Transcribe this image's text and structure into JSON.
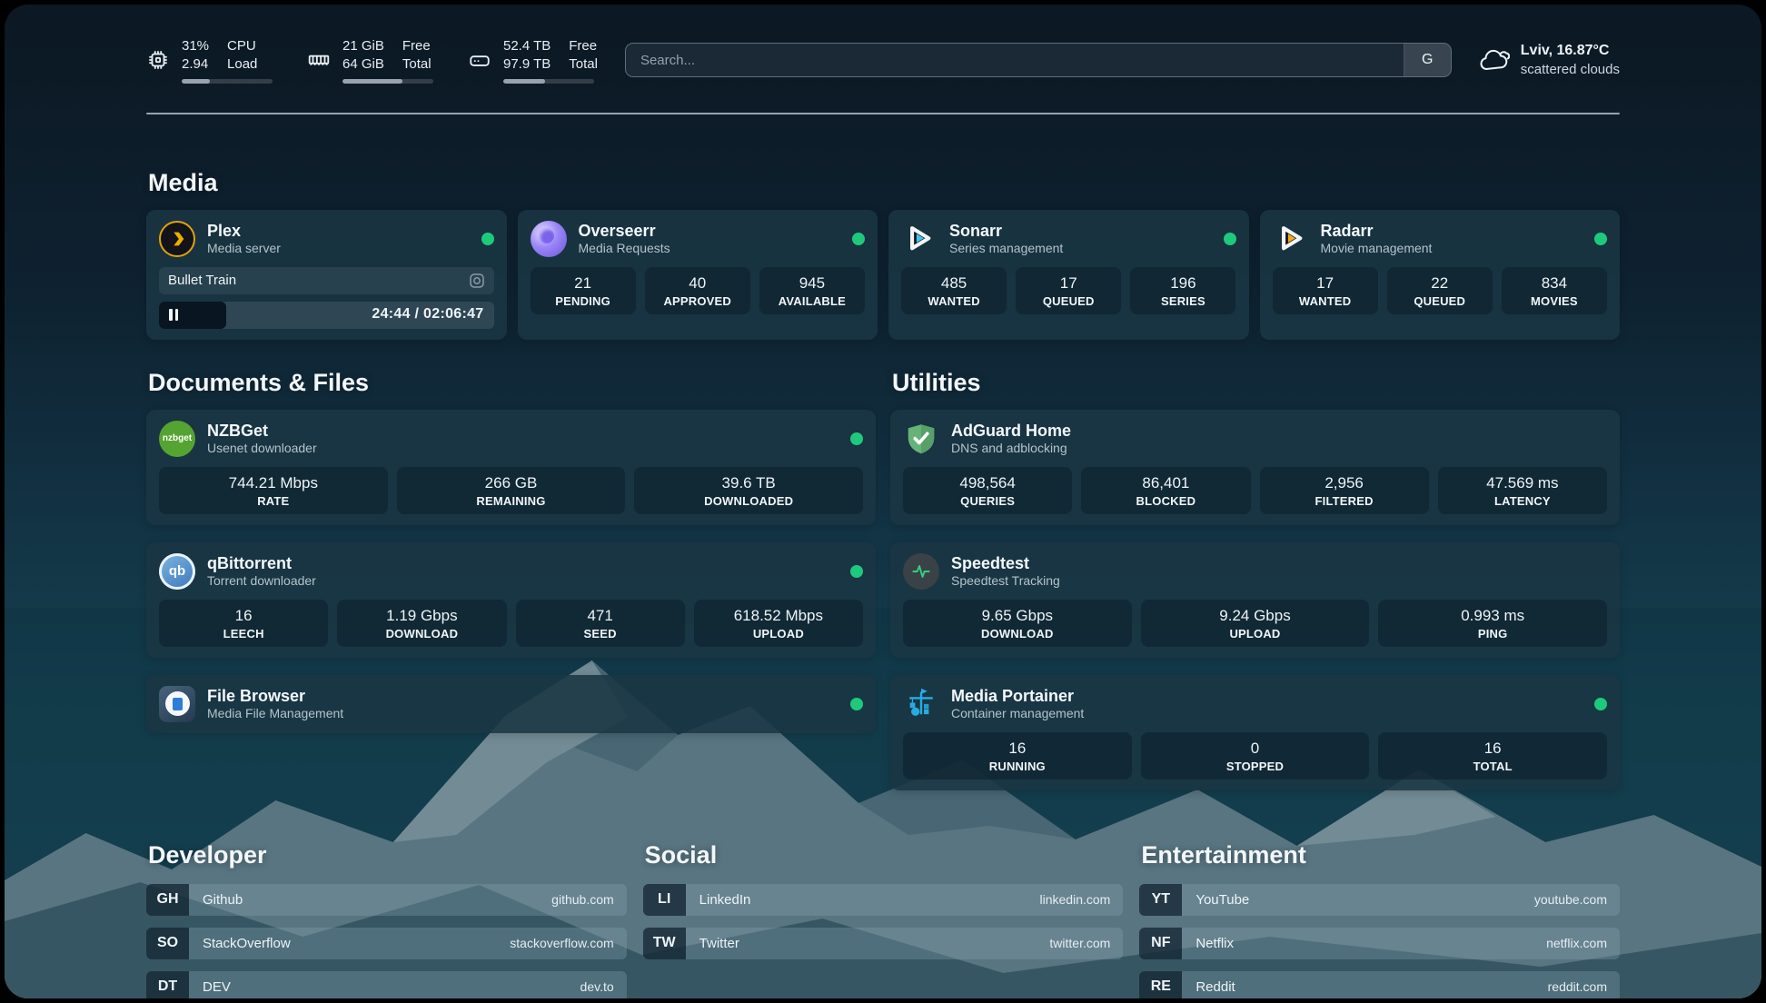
{
  "header": {
    "stats": [
      {
        "icon": "cpu-icon",
        "value1": "31%",
        "value2": "2.94",
        "label1": "CPU",
        "label2": "Load",
        "progress": 31
      },
      {
        "icon": "ram-icon",
        "value1": "21 GiB",
        "value2": "64 GiB",
        "label1": "Free",
        "label2": "Total",
        "progress": 66
      },
      {
        "icon": "disk-icon",
        "value1": "52.4 TB",
        "value2": "97.9 TB",
        "label1": "Free",
        "label2": "Total",
        "progress": 46
      }
    ],
    "search": {
      "placeholder": "Search...",
      "button": "G"
    },
    "weather": {
      "location_temp": "Lviv, 16.87°C",
      "condition": "scattered clouds"
    }
  },
  "media": {
    "title": "Media",
    "cards": [
      {
        "name": "Plex",
        "desc": "Media server",
        "online": true,
        "player": {
          "now_playing": "Bullet Train",
          "time": "24:44 / 02:06:47",
          "progress_pct": 20
        }
      },
      {
        "name": "Overseerr",
        "desc": "Media Requests",
        "online": true,
        "stats": [
          {
            "v": "21",
            "l": "PENDING"
          },
          {
            "v": "40",
            "l": "APPROVED"
          },
          {
            "v": "945",
            "l": "AVAILABLE"
          }
        ]
      },
      {
        "name": "Sonarr",
        "desc": "Series management",
        "online": true,
        "stats": [
          {
            "v": "485",
            "l": "WANTED"
          },
          {
            "v": "17",
            "l": "QUEUED"
          },
          {
            "v": "196",
            "l": "SERIES"
          }
        ]
      },
      {
        "name": "Radarr",
        "desc": "Movie management",
        "online": true,
        "stats": [
          {
            "v": "17",
            "l": "WANTED"
          },
          {
            "v": "22",
            "l": "QUEUED"
          },
          {
            "v": "834",
            "l": "MOVIES"
          }
        ]
      }
    ]
  },
  "documents": {
    "title": "Documents & Files",
    "cards": [
      {
        "name": "NZBGet",
        "desc": "Usenet downloader",
        "online": true,
        "stats": [
          {
            "v": "744.21 Mbps",
            "l": "RATE"
          },
          {
            "v": "266 GB",
            "l": "REMAINING"
          },
          {
            "v": "39.6 TB",
            "l": "DOWNLOADED"
          }
        ]
      },
      {
        "name": "qBittorrent",
        "desc": "Torrent downloader",
        "online": true,
        "stats": [
          {
            "v": "16",
            "l": "LEECH"
          },
          {
            "v": "1.19 Gbps",
            "l": "DOWNLOAD"
          },
          {
            "v": "471",
            "l": "SEED"
          },
          {
            "v": "618.52 Mbps",
            "l": "UPLOAD"
          }
        ]
      },
      {
        "name": "File Browser",
        "desc": "Media File Management",
        "online": true
      }
    ]
  },
  "utilities": {
    "title": "Utilities",
    "cards": [
      {
        "name": "AdGuard Home",
        "desc": "DNS and adblocking",
        "stats": [
          {
            "v": "498,564",
            "l": "QUERIES"
          },
          {
            "v": "86,401",
            "l": "BLOCKED"
          },
          {
            "v": "2,956",
            "l": "FILTERED"
          },
          {
            "v": "47.569 ms",
            "l": "LATENCY"
          }
        ]
      },
      {
        "name": "Speedtest",
        "desc": "Speedtest Tracking",
        "stats": [
          {
            "v": "9.65 Gbps",
            "l": "DOWNLOAD"
          },
          {
            "v": "9.24 Gbps",
            "l": "UPLOAD"
          },
          {
            "v": "0.993 ms",
            "l": "PING"
          }
        ]
      },
      {
        "name": "Media Portainer",
        "desc": "Container management",
        "online": true,
        "stats": [
          {
            "v": "16",
            "l": "RUNNING"
          },
          {
            "v": "0",
            "l": "STOPPED"
          },
          {
            "v": "16",
            "l": "TOTAL"
          }
        ]
      }
    ]
  },
  "bookmarks": {
    "groups": [
      {
        "title": "Developer",
        "items": [
          {
            "abbr": "GH",
            "name": "Github",
            "domain": "github.com"
          },
          {
            "abbr": "SO",
            "name": "StackOverflow",
            "domain": "stackoverflow.com"
          },
          {
            "abbr": "DT",
            "name": "DEV",
            "domain": "dev.to"
          }
        ]
      },
      {
        "title": "Social",
        "items": [
          {
            "abbr": "LI",
            "name": "LinkedIn",
            "domain": "linkedin.com"
          },
          {
            "abbr": "TW",
            "name": "Twitter",
            "domain": "twitter.com"
          }
        ]
      },
      {
        "title": "Entertainment",
        "items": [
          {
            "abbr": "YT",
            "name": "YouTube",
            "domain": "youtube.com"
          },
          {
            "abbr": "NF",
            "name": "Netflix",
            "domain": "netflix.com"
          },
          {
            "abbr": "RE",
            "name": "Reddit",
            "domain": "reddit.com"
          }
        ]
      }
    ]
  },
  "accent_colors": {
    "status_online": "#1fc97c",
    "plex_yellow": "#e5a00d",
    "sonarr_blue": "#38c6f4",
    "radarr_gold": "#f5a623",
    "overseerr_purple": "#8b76f0",
    "nzbget_green": "#55a431",
    "qbittorrent_blue": "#3c77b8",
    "adguard_green": "#67b279",
    "speedtest_green": "#2fd07f",
    "portainer_blue": "#29abe2",
    "filebrowser_blue": "#2e7cd6"
  }
}
